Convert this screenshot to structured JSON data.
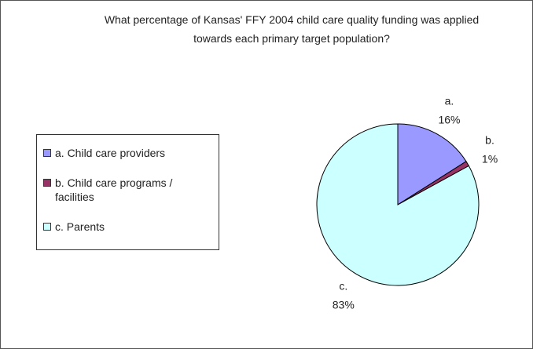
{
  "chart_data": {
    "type": "pie",
    "title": "What percentage of Kansas' FFY 2004 child care quality funding was applied towards each primary target population?",
    "categories": [
      "a. Child care providers",
      "b. Child care programs / facilities",
      "c. Parents"
    ],
    "slice_labels": [
      "a.",
      "b.",
      "c."
    ],
    "values": [
      16,
      1,
      83
    ],
    "value_labels": [
      "16%",
      "1%",
      "83%"
    ],
    "colors": [
      "#9999ff",
      "#993366",
      "#ccffff"
    ],
    "legend": "left"
  }
}
